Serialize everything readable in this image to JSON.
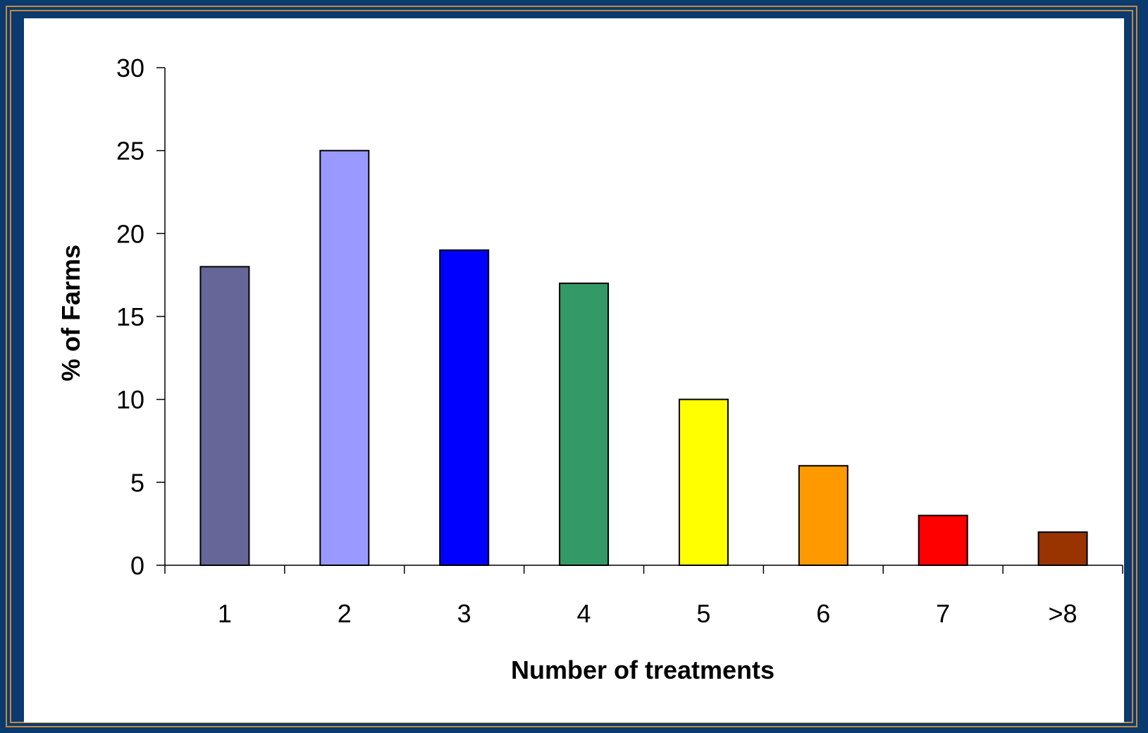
{
  "chart_data": {
    "type": "bar",
    "categories": [
      "1",
      "2",
      "3",
      "4",
      "5",
      "6",
      "7",
      ">8"
    ],
    "values": [
      18,
      25,
      19,
      17,
      10,
      6,
      3,
      2
    ],
    "colors": [
      "#666699",
      "#9999ff",
      "#0000ff",
      "#339966",
      "#ffff00",
      "#ff9900",
      "#ff0000",
      "#993300"
    ],
    "title": "",
    "xlabel": "Number of treatments",
    "ylabel": "% of Farms",
    "ylim": [
      0,
      30
    ],
    "yticks": [
      0,
      5,
      10,
      15,
      20,
      25,
      30
    ],
    "grid": false,
    "legend": "none"
  }
}
